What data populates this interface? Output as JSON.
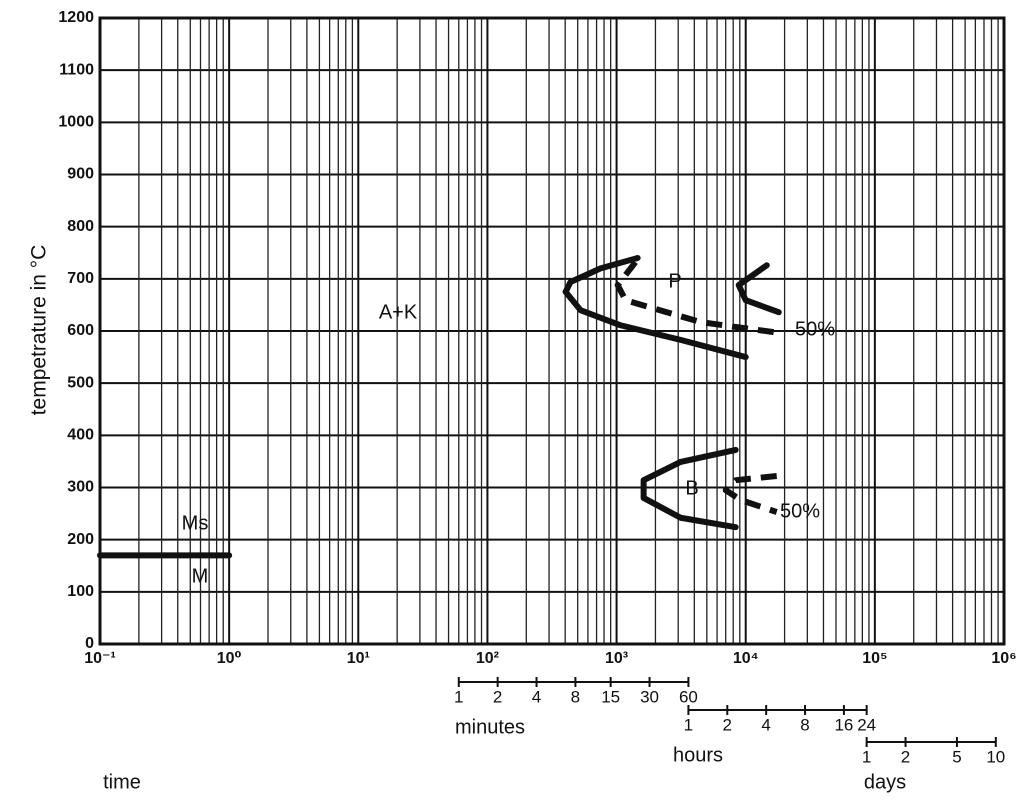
{
  "chart_data": {
    "type": "line",
    "y_label": "tempetrature in °C",
    "x_label": "time",
    "log_x": true,
    "grid": true,
    "xlim": [
      0.1,
      1000000
    ],
    "ylim": [
      0,
      1200
    ],
    "yticks": [
      0,
      100,
      200,
      300,
      400,
      500,
      600,
      700,
      800,
      900,
      1000,
      1100,
      1200
    ],
    "xticks": [
      {
        "value": 0.1,
        "label": "10⁻¹"
      },
      {
        "value": 1,
        "label": "10⁰"
      },
      {
        "value": 10,
        "label": "10¹"
      },
      {
        "value": 100,
        "label": "10²"
      },
      {
        "value": 1000,
        "label": "10³"
      },
      {
        "value": 10000,
        "label": "10⁴"
      },
      {
        "value": 100000,
        "label": "10⁵"
      },
      {
        "value": 1000000,
        "label": "10⁶"
      }
    ],
    "time_scales": [
      {
        "label": "minutes",
        "ticks": [
          {
            "value": 60,
            "label": "1"
          },
          {
            "value": 120,
            "label": "2"
          },
          {
            "value": 240,
            "label": "4"
          },
          {
            "value": 480,
            "label": "8"
          },
          {
            "value": 900,
            "label": "15"
          },
          {
            "value": 1800,
            "label": "30"
          },
          {
            "value": 3600,
            "label": "60"
          }
        ]
      },
      {
        "label": "hours",
        "ticks": [
          {
            "value": 3600,
            "label": "1"
          },
          {
            "value": 7200,
            "label": "2"
          },
          {
            "value": 14400,
            "label": "4"
          },
          {
            "value": 28800,
            "label": "8"
          },
          {
            "value": 57600,
            "label": "16"
          },
          {
            "value": 86400,
            "label": "24"
          }
        ]
      },
      {
        "label": "days",
        "ticks": [
          {
            "value": 86400,
            "label": "1"
          },
          {
            "value": 172800,
            "label": "2"
          },
          {
            "value": 432000,
            "label": "5"
          },
          {
            "value": 864000,
            "label": "10"
          }
        ]
      }
    ],
    "color": "#111111",
    "series": [
      {
        "style": "solid",
        "x": [
          0.1,
          1
        ],
        "values": [
          170,
          170
        ]
      },
      {
        "style": "solid",
        "x": [
          1456,
          752,
          440,
          403,
          526,
          1072,
          3130,
          10000
        ],
        "values": [
          740,
          720,
          694,
          675,
          640,
          611,
          583,
          550
        ]
      },
      {
        "style": "dashed",
        "x": [
          1400,
          1020,
          1174,
          4480,
          18660
        ],
        "values": [
          732,
          688,
          659,
          617,
          596
        ]
      },
      {
        "style": "solid",
        "x": [
          14550,
          8830,
          10000,
          18030
        ],
        "values": [
          726,
          688,
          659,
          636
        ]
      },
      {
        "style": "solid",
        "x": [
          8360,
          3130,
          1620,
          1620,
          3130,
          8360
        ],
        "values": [
          372,
          349,
          314,
          280,
          242,
          224
        ]
      },
      {
        "style": "dashed",
        "x": [
          17380,
          8360,
          7000,
          9150,
          17380
        ],
        "values": [
          322,
          314,
          295,
          276,
          253
        ]
      }
    ],
    "annotations": [
      "Ms",
      "M",
      "A+K",
      "P",
      "50%",
      "B",
      "50%"
    ]
  }
}
